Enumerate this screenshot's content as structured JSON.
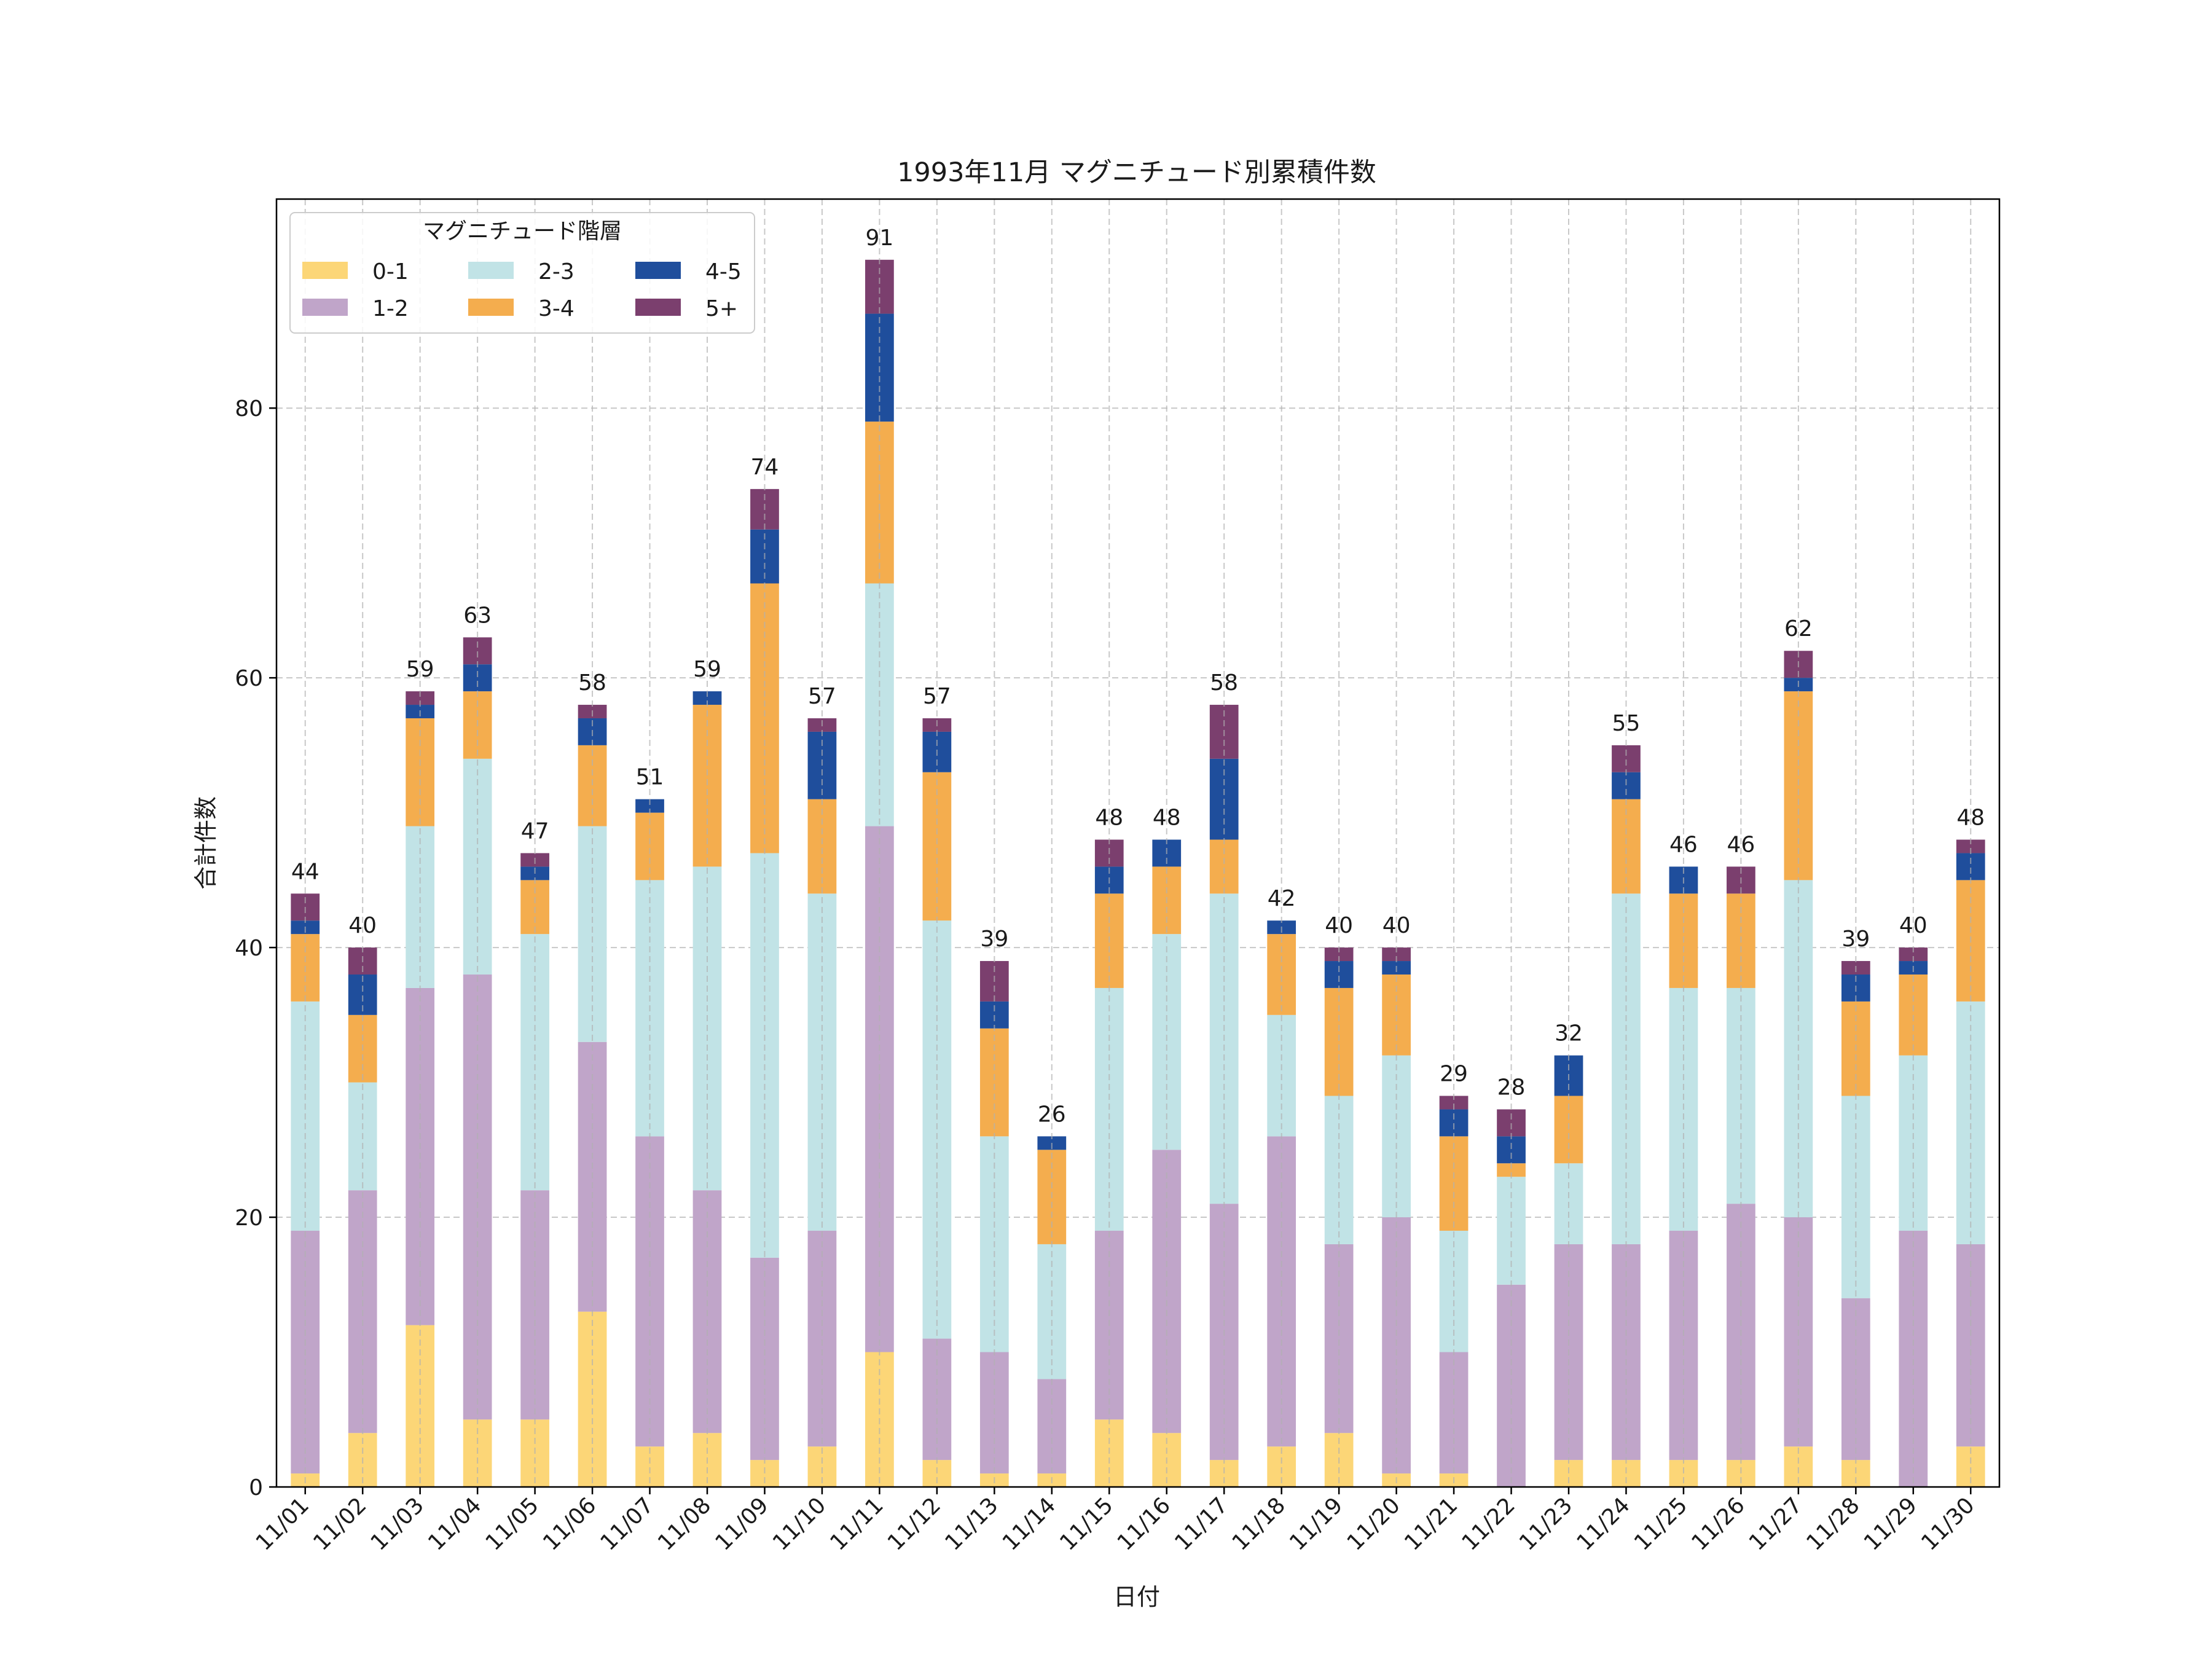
{
  "chart_data": {
    "type": "bar",
    "stacked": true,
    "title": "1993年11月 マグニチュード別累積件数",
    "xlabel": "日付",
    "ylabel": "合計件数",
    "ylim": [
      0,
      95.5
    ],
    "yticks": [
      0,
      20,
      40,
      60,
      80
    ],
    "grid": true,
    "legend": {
      "title": "マグニチュード階層",
      "placement": "top-left",
      "columns": 3
    },
    "categories": [
      "11/01",
      "11/02",
      "11/03",
      "11/04",
      "11/05",
      "11/06",
      "11/07",
      "11/08",
      "11/09",
      "11/10",
      "11/11",
      "11/12",
      "11/13",
      "11/14",
      "11/15",
      "11/16",
      "11/17",
      "11/18",
      "11/19",
      "11/20",
      "11/21",
      "11/22",
      "11/23",
      "11/24",
      "11/25",
      "11/26",
      "11/27",
      "11/28",
      "11/29",
      "11/30"
    ],
    "series": [
      {
        "name": "0-1",
        "color": "#fcd677",
        "values": [
          1,
          4,
          12,
          5,
          5,
          13,
          3,
          4,
          2,
          3,
          10,
          2,
          1,
          1,
          5,
          4,
          2,
          3,
          4,
          1,
          1,
          0,
          2,
          2,
          2,
          2,
          3,
          2,
          0,
          3
        ]
      },
      {
        "name": "1-2",
        "color": "#c0a5c9",
        "values": [
          18,
          18,
          25,
          33,
          17,
          20,
          23,
          18,
          15,
          16,
          39,
          9,
          9,
          7,
          14,
          21,
          19,
          23,
          14,
          19,
          9,
          15,
          16,
          16,
          17,
          19,
          17,
          12,
          19,
          15
        ]
      },
      {
        "name": "2-3",
        "color": "#c1e3e6",
        "values": [
          17,
          8,
          12,
          16,
          19,
          16,
          19,
          24,
          30,
          25,
          18,
          31,
          16,
          10,
          18,
          16,
          23,
          9,
          11,
          12,
          9,
          8,
          6,
          26,
          18,
          16,
          25,
          15,
          13,
          18
        ]
      },
      {
        "name": "3-4",
        "color": "#f4ad4e",
        "values": [
          5,
          5,
          8,
          5,
          4,
          6,
          5,
          12,
          20,
          7,
          12,
          11,
          8,
          7,
          7,
          5,
          4,
          6,
          8,
          6,
          7,
          1,
          5,
          7,
          7,
          7,
          14,
          7,
          6,
          9
        ]
      },
      {
        "name": "4-5",
        "color": "#1f4e9c",
        "values": [
          1,
          3,
          1,
          2,
          1,
          2,
          1,
          1,
          4,
          5,
          8,
          3,
          2,
          1,
          2,
          2,
          6,
          1,
          2,
          1,
          2,
          2,
          3,
          2,
          2,
          0,
          1,
          2,
          1,
          2
        ]
      },
      {
        "name": "5+",
        "color": "#7b3f6e",
        "values": [
          2,
          2,
          1,
          2,
          1,
          1,
          0,
          0,
          3,
          1,
          4,
          1,
          3,
          0,
          2,
          0,
          4,
          0,
          1,
          1,
          1,
          2,
          0,
          2,
          0,
          2,
          2,
          1,
          1,
          1
        ]
      }
    ],
    "totals": [
      44,
      40,
      59,
      63,
      47,
      58,
      51,
      59,
      74,
      57,
      91,
      57,
      39,
      26,
      48,
      48,
      58,
      42,
      40,
      40,
      29,
      28,
      32,
      55,
      46,
      46,
      62,
      39,
      40,
      48
    ]
  }
}
